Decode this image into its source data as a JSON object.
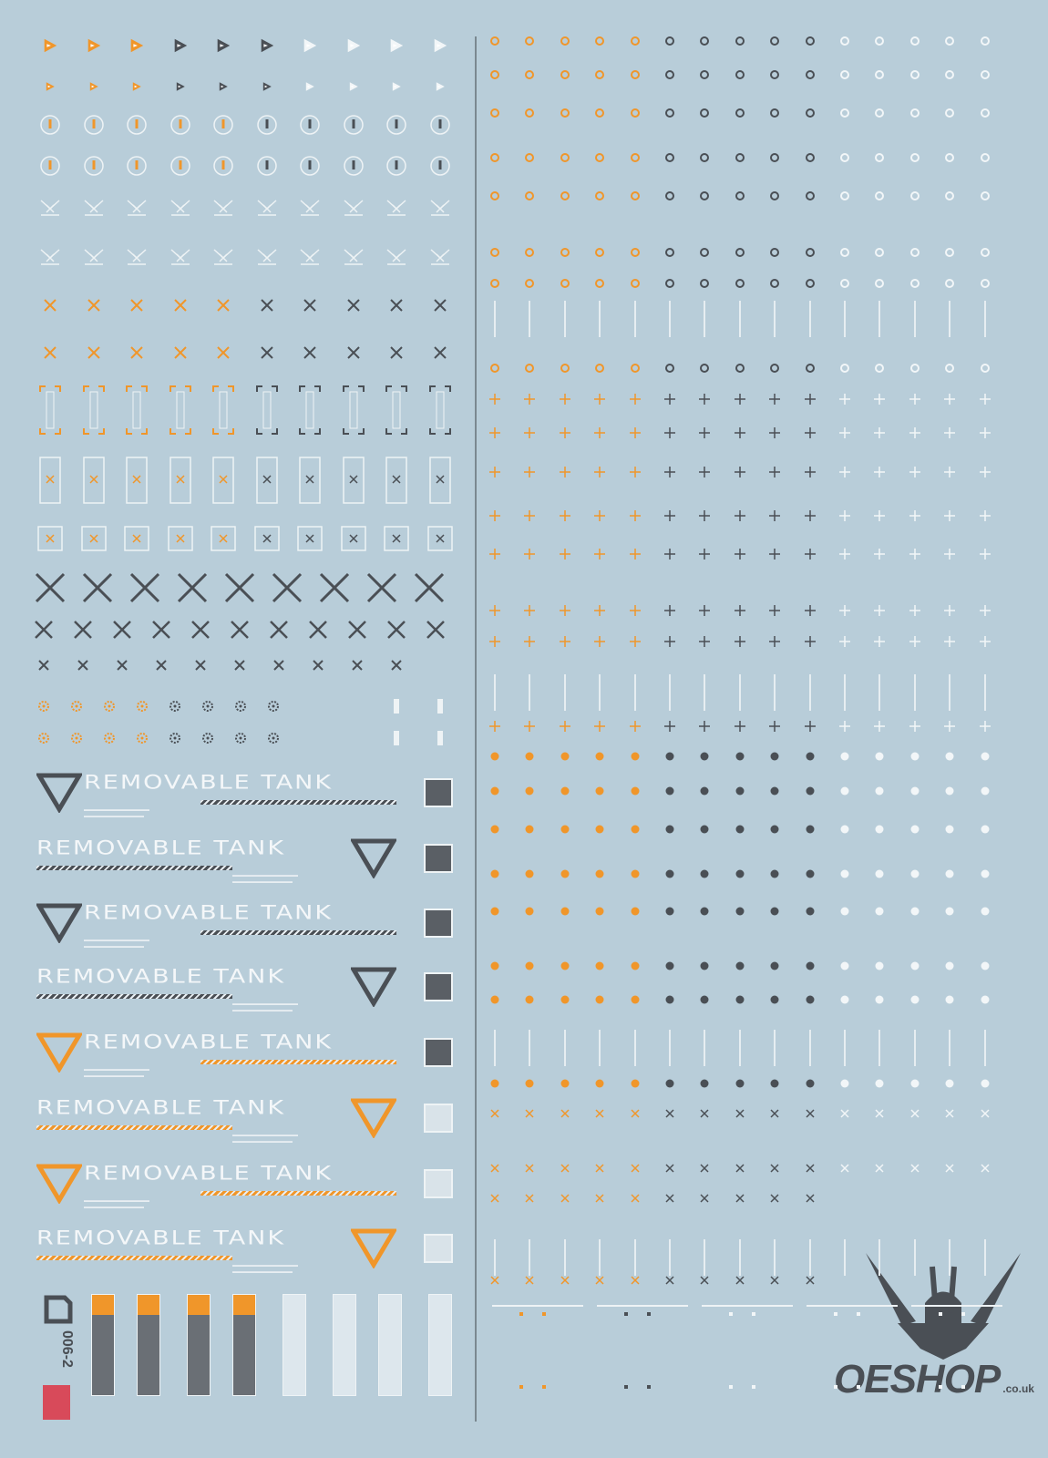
{
  "colors": {
    "background": "#b8cdd9",
    "orange": "#f0962a",
    "dark": "#4a4f55",
    "white": "#f2f6f8"
  },
  "tank_label": "REMOVABLE TANK",
  "logo_code": "006-2",
  "watermark": {
    "name": "OESHOP",
    "tld": ".co.uk"
  },
  "icons": {
    "left_rows": [
      "flag",
      "flag-small",
      "circle-ring",
      "circle-ring",
      "chevron-x",
      "chevron-x",
      "cross",
      "cross",
      "bracket-frame",
      "rect-frame",
      "square-frame",
      "x-large",
      "x-medium",
      "x-small",
      "gear",
      "gear"
    ],
    "right_rows": [
      "ring",
      "plus",
      "dot",
      "x"
    ]
  }
}
